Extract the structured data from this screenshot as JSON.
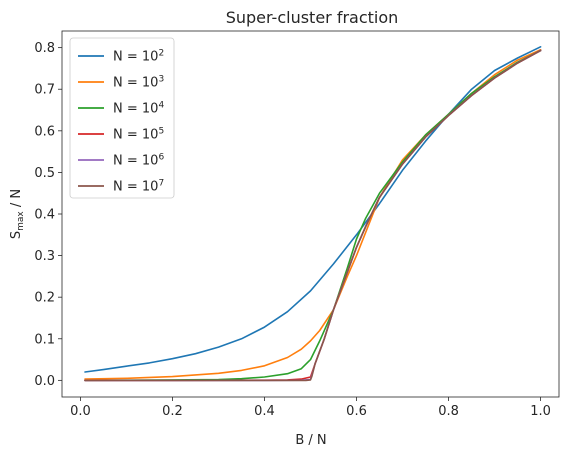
{
  "chart_data": {
    "type": "line",
    "title": "Super-cluster fraction",
    "xlabel": "B / N",
    "ylabel_main": "S",
    "ylabel_sub": "max",
    "ylabel_rest": " / N",
    "xlim": [
      -0.04,
      1.04
    ],
    "ylim": [
      -0.04,
      0.84
    ],
    "xticks": [
      0.0,
      0.2,
      0.4,
      0.6,
      0.8,
      1.0
    ],
    "xtick_labels": [
      "0.0",
      "0.2",
      "0.4",
      "0.6",
      "0.8",
      "1.0"
    ],
    "yticks": [
      0.0,
      0.1,
      0.2,
      0.3,
      0.4,
      0.5,
      0.6,
      0.7,
      0.8
    ],
    "ytick_labels": [
      "0.0",
      "0.1",
      "0.2",
      "0.3",
      "0.4",
      "0.5",
      "0.6",
      "0.7",
      "0.8"
    ],
    "grid": false,
    "legend_position": "upper-left",
    "series": [
      {
        "name": "N = 10^2",
        "label_base": "N = 10",
        "label_exp": "2",
        "color": "#1f77b4",
        "x": [
          0.01,
          0.05,
          0.1,
          0.15,
          0.2,
          0.25,
          0.3,
          0.35,
          0.4,
          0.45,
          0.5,
          0.55,
          0.6,
          0.65,
          0.7,
          0.75,
          0.8,
          0.85,
          0.9,
          0.95,
          1.0
        ],
        "y": [
          0.02,
          0.026,
          0.034,
          0.042,
          0.052,
          0.064,
          0.08,
          0.1,
          0.128,
          0.165,
          0.215,
          0.28,
          0.35,
          0.425,
          0.505,
          0.575,
          0.64,
          0.7,
          0.745,
          0.775,
          0.802
        ]
      },
      {
        "name": "N = 10^3",
        "label_base": "N = 10",
        "label_exp": "3",
        "color": "#ff7f0e",
        "x": [
          0.01,
          0.1,
          0.2,
          0.3,
          0.35,
          0.4,
          0.45,
          0.48,
          0.5,
          0.52,
          0.55,
          0.58,
          0.6,
          0.65,
          0.7,
          0.75,
          0.8,
          0.85,
          0.9,
          0.95,
          1.0
        ],
        "y": [
          0.003,
          0.005,
          0.009,
          0.017,
          0.024,
          0.035,
          0.055,
          0.075,
          0.095,
          0.12,
          0.17,
          0.25,
          0.3,
          0.44,
          0.53,
          0.59,
          0.64,
          0.69,
          0.735,
          0.77,
          0.795
        ]
      },
      {
        "name": "N = 10^4",
        "label_base": "N = 10",
        "label_exp": "4",
        "color": "#2ca02c",
        "x": [
          0.01,
          0.1,
          0.2,
          0.3,
          0.35,
          0.4,
          0.45,
          0.48,
          0.5,
          0.52,
          0.55,
          0.58,
          0.6,
          0.62,
          0.65,
          0.7,
          0.75,
          0.8,
          0.85,
          0.9,
          0.95,
          1.0
        ],
        "y": [
          0.0,
          0.0005,
          0.001,
          0.002,
          0.004,
          0.008,
          0.016,
          0.028,
          0.05,
          0.095,
          0.17,
          0.27,
          0.34,
          0.39,
          0.45,
          0.525,
          0.59,
          0.64,
          0.69,
          0.73,
          0.765,
          0.793
        ]
      },
      {
        "name": "N = 10^5",
        "label_base": "N = 10",
        "label_exp": "5",
        "color": "#d62728",
        "x": [
          0.01,
          0.2,
          0.4,
          0.45,
          0.48,
          0.5,
          0.51,
          0.53,
          0.55,
          0.58,
          0.6,
          0.62,
          0.65,
          0.7,
          0.75,
          0.8,
          0.85,
          0.9,
          0.95,
          1.0
        ],
        "y": [
          0.0,
          0.0,
          0.0005,
          0.001,
          0.003,
          0.008,
          0.04,
          0.1,
          0.17,
          0.26,
          0.32,
          0.37,
          0.44,
          0.52,
          0.585,
          0.637,
          0.685,
          0.727,
          0.763,
          0.793
        ]
      },
      {
        "name": "N = 10^6",
        "label_base": "N = 10",
        "label_exp": "6",
        "color": "#9467bd",
        "x": [
          0.01,
          0.2,
          0.4,
          0.48,
          0.5,
          0.505,
          0.51,
          0.53,
          0.55,
          0.58,
          0.6,
          0.62,
          0.65,
          0.7,
          0.75,
          0.8,
          0.85,
          0.9,
          0.95,
          1.0
        ],
        "y": [
          0.0,
          0.0,
          0.0,
          0.0005,
          0.002,
          0.02,
          0.04,
          0.1,
          0.17,
          0.26,
          0.32,
          0.37,
          0.44,
          0.52,
          0.585,
          0.637,
          0.685,
          0.727,
          0.763,
          0.793
        ]
      },
      {
        "name": "N = 10^7",
        "label_base": "N = 10",
        "label_exp": "7",
        "color": "#8c564b",
        "x": [
          0.01,
          0.2,
          0.4,
          0.49,
          0.5,
          0.503,
          0.51,
          0.53,
          0.55,
          0.58,
          0.6,
          0.62,
          0.65,
          0.7,
          0.75,
          0.8,
          0.85,
          0.9,
          0.95,
          1.0
        ],
        "y": [
          0.0,
          0.0,
          0.0,
          0.0,
          0.001,
          0.01,
          0.04,
          0.1,
          0.17,
          0.26,
          0.32,
          0.37,
          0.44,
          0.52,
          0.585,
          0.637,
          0.685,
          0.727,
          0.763,
          0.793
        ]
      }
    ]
  }
}
